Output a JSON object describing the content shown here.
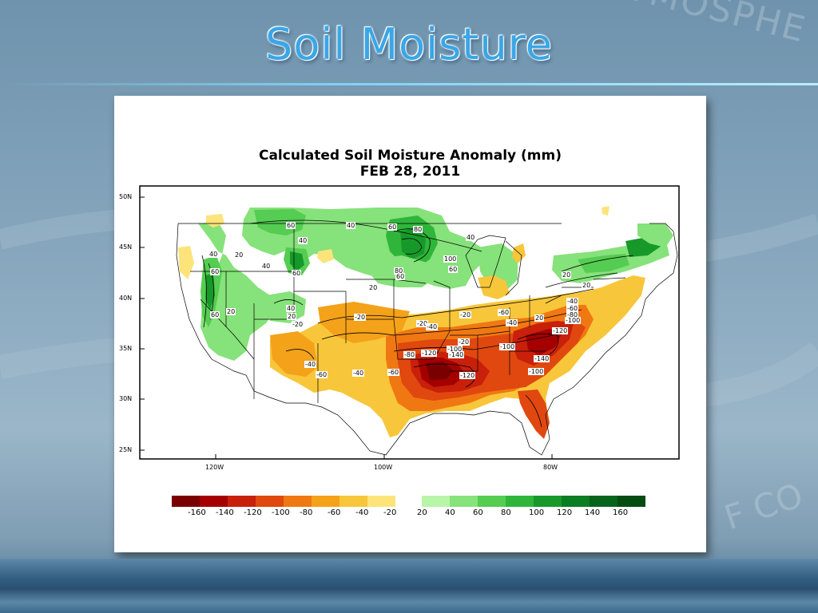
{
  "slide": {
    "title": "Soil Moisture",
    "watermark_top": "ND ATMOSPHE",
    "watermark_bottom": "F CO",
    "accent_color": "#3aa6e6"
  },
  "figure": {
    "title_line1": "Calculated Soil Moisture Anomaly (mm)",
    "title_line2": "FEB 28, 2011",
    "lat_labels": [
      "50N",
      "45N",
      "40N",
      "35N",
      "30N",
      "25N"
    ],
    "lon_labels": [
      "120W",
      "100W",
      "80W"
    ],
    "colorbar": {
      "labels": [
        "-160",
        "-140",
        "-120",
        "-100",
        "-80",
        "-60",
        "-40",
        "-20",
        "20",
        "40",
        "60",
        "80",
        "100",
        "120",
        "140",
        "160"
      ],
      "dry_colors": [
        "#7a0000",
        "#a50000",
        "#c8200a",
        "#e04810",
        "#f07812",
        "#f4a21a",
        "#f8c63a",
        "#fde47a"
      ],
      "wet_colors": [
        "#b9f5a8",
        "#86e27a",
        "#55cc52",
        "#2fb63a",
        "#17992a",
        "#0b7d22",
        "#06641a",
        "#034d12"
      ]
    },
    "contour_labels": [
      {
        "text": "40",
        "region": "montana"
      },
      {
        "text": "60",
        "region": "montana"
      },
      {
        "text": "20",
        "region": "idaho"
      },
      {
        "text": "40",
        "region": "north-dakota"
      },
      {
        "text": "60",
        "region": "minnesota"
      },
      {
        "text": "80",
        "region": "minnesota"
      },
      {
        "text": "40",
        "region": "wisconsin"
      },
      {
        "text": "60",
        "region": "oregon"
      },
      {
        "text": "40",
        "region": "oregon"
      },
      {
        "text": "40",
        "region": "wyoming"
      },
      {
        "text": "60",
        "region": "wyoming"
      },
      {
        "text": "100",
        "region": "iowa"
      },
      {
        "text": "60",
        "region": "iowa"
      },
      {
        "text": "80",
        "region": "nebraska"
      },
      {
        "text": "60",
        "region": "nebraska"
      },
      {
        "text": "20",
        "region": "nebraska"
      },
      {
        "text": "60",
        "region": "california"
      },
      {
        "text": "20",
        "region": "california"
      },
      {
        "text": "40",
        "region": "colorado"
      },
      {
        "text": "20",
        "region": "colorado"
      },
      {
        "text": "-20",
        "region": "colorado"
      },
      {
        "text": "-20",
        "region": "kansas"
      },
      {
        "text": "-20",
        "region": "missouri"
      },
      {
        "text": "-40",
        "region": "missouri"
      },
      {
        "text": "-20",
        "region": "illinois"
      },
      {
        "text": "-60",
        "region": "kentucky"
      },
      {
        "text": "-40",
        "region": "kentucky"
      },
      {
        "text": "20",
        "region": "ohio"
      },
      {
        "text": "-40",
        "region": "virginia"
      },
      {
        "text": "-60",
        "region": "virginia"
      },
      {
        "text": "-80",
        "region": "virginia"
      },
      {
        "text": "-100",
        "region": "virginia"
      },
      {
        "text": "20",
        "region": "pennsylvania"
      },
      {
        "text": "20",
        "region": "new-york"
      },
      {
        "text": "-120",
        "region": "north-carolina"
      },
      {
        "text": "-100",
        "region": "tennessee"
      },
      {
        "text": "-140",
        "region": "south-carolina"
      },
      {
        "text": "-100",
        "region": "georgia"
      },
      {
        "text": "-80",
        "region": "arkansas"
      },
      {
        "text": "-120",
        "region": "arkansas"
      },
      {
        "text": "-100",
        "region": "mississippi"
      },
      {
        "text": "-140",
        "region": "mississippi"
      },
      {
        "text": "-120",
        "region": "alabama"
      },
      {
        "text": "-20",
        "region": "tennessee"
      },
      {
        "text": "-40",
        "region": "arizona"
      },
      {
        "text": "-60",
        "region": "arizona"
      },
      {
        "text": "-40",
        "region": "new-mexico"
      },
      {
        "text": "-60",
        "region": "texas"
      }
    ]
  }
}
